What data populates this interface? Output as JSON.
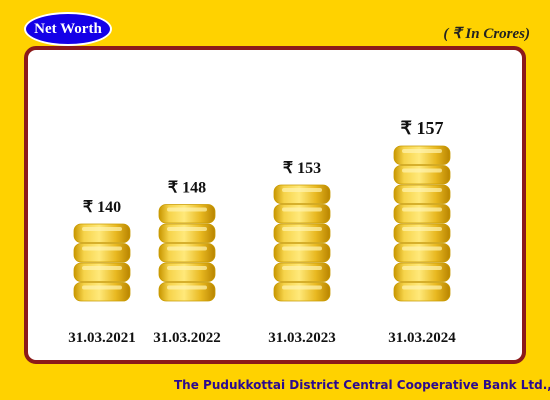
{
  "badge": "Net Worth",
  "unit_note": "( ₹ In Crores)",
  "footer": "The Pudukkottai District Central Cooperative Bank Ltd.,",
  "colors": {
    "background": "#FFD200",
    "badge": "#1400E8",
    "panel_border": "#8B1A1A",
    "coin": "#F0C020",
    "footer_text": "#2B0A90"
  },
  "chart_data": {
    "type": "bar",
    "title": "Net Worth",
    "currency_symbol": "₹",
    "categories": [
      "31.03.2021",
      "31.03.2022",
      "31.03.2023",
      "31.03.2024"
    ],
    "values": [
      140,
      148,
      153,
      157
    ],
    "value_labels": [
      "₹ 140",
      "₹ 148",
      "₹ 153",
      "₹ 157"
    ],
    "coin_counts": [
      4,
      5,
      6,
      8
    ],
    "grid": false,
    "legend": "none"
  }
}
